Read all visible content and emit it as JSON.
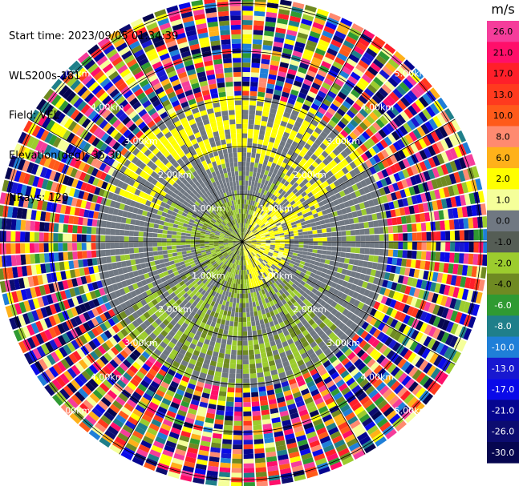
{
  "header": {
    "start_time": "Start time: 2023/09/05 01:34:39",
    "instrument": "WLS200s-181",
    "field": "Field: VEL",
    "elevation": "Elevation(deg): 35.30",
    "nrays": "NRays: 120"
  },
  "chart_data": {
    "type": "heatmap",
    "projection": "polar-ppi",
    "field": "VEL",
    "units": "m/s",
    "nrays": 120,
    "elevation_deg": 35.3,
    "range_rings_km": [
      1.0,
      2.0,
      3.0,
      4.0,
      5.0
    ],
    "ring_labels": [
      "1.00km",
      "2.00km",
      "3.00km",
      "4.00km",
      "5.00km"
    ],
    "max_range_km": 5.15,
    "spoke_angles_deg": [
      0,
      30,
      60,
      90,
      120,
      150,
      180,
      210,
      240,
      270,
      300,
      330
    ],
    "colorbar": {
      "label": "m/s",
      "ticks": [
        "26.0",
        "21.0",
        "17.0",
        "13.0",
        "10.0",
        "8.0",
        "6.0",
        "2.0",
        "1.0",
        "0.0",
        "-1.0",
        "-2.0",
        "-4.0",
        "-6.0",
        "-8.0",
        "-10.0",
        "-13.0",
        "-17.0",
        "-21.0",
        "-26.0",
        "-30.0"
      ],
      "colors": [
        "#f53d9b",
        "#ff0f6a",
        "#ff1f2a",
        "#ff3a1e",
        "#ff5a1a",
        "#ff8a70",
        "#ffb11a",
        "#ffff00",
        "#f5ff9a",
        "#707882",
        "#555d55",
        "#9ccc2e",
        "#6f8a22",
        "#2f9a32",
        "#1f7f8a",
        "#1f7fd8",
        "#1818d0",
        "#0a0ae8",
        "#050590",
        "#0c0c70",
        "#060650"
      ]
    },
    "regions": [
      {
        "range_km": [
          0.0,
          1.0
        ],
        "description": "near field: olive/green west, yellow east"
      },
      {
        "range_km": [
          1.0,
          3.0
        ],
        "description": "grey dominant with green south, yellow north"
      },
      {
        "range_km": [
          3.0,
          5.15
        ],
        "description": "noise: multicolour random gates"
      }
    ]
  }
}
